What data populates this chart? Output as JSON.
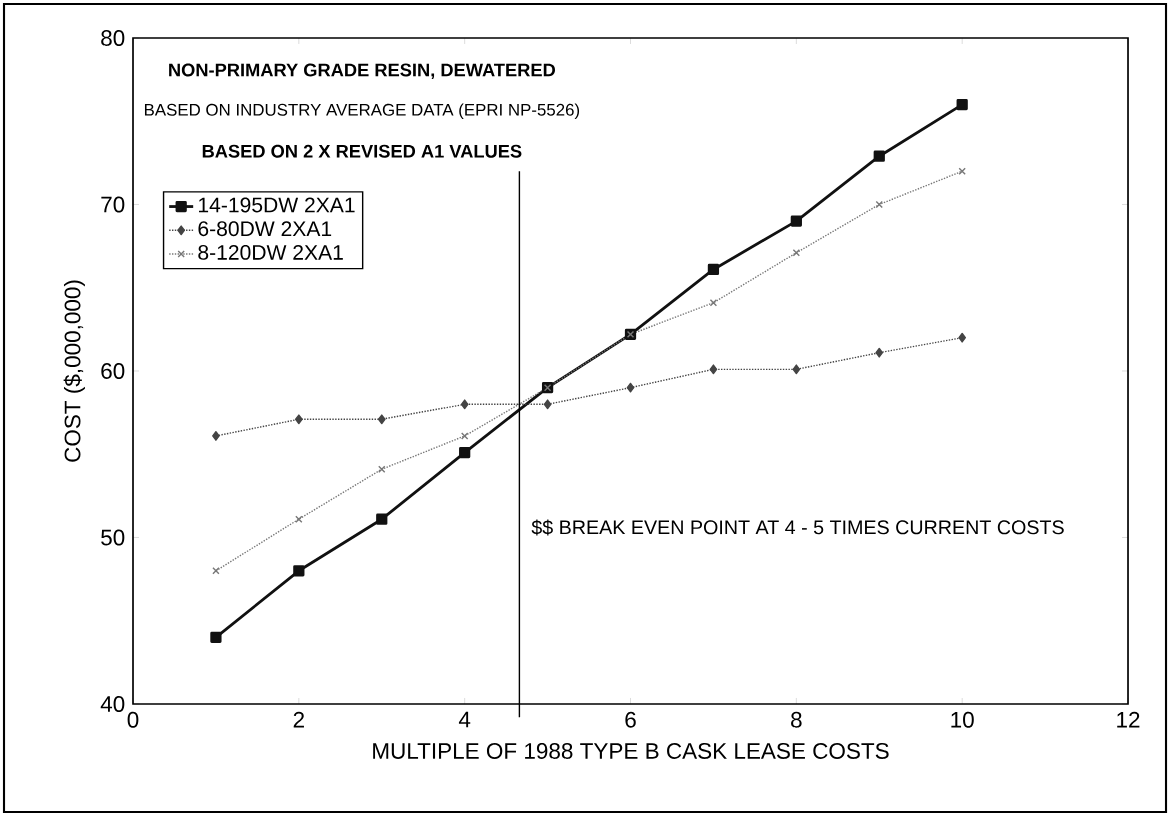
{
  "chart_data": {
    "type": "line",
    "title": "NON-PRIMARY GRADE RESIN, DEWATERED",
    "subtitle": "BASED ON INDUSTRY AVERAGE DATA (EPRI NP-5526)",
    "annotations": [
      "BASED ON 2 X REVISED A1 VALUES"
    ],
    "xlabel": "MULTIPLE OF 1988 TYPE B CASK LEASE COSTS",
    "ylabel": "COST ($,000,000)",
    "x": [
      1,
      2,
      3,
      4,
      5,
      6,
      7,
      8,
      9,
      10
    ],
    "series": [
      {
        "name": "14-195DW 2XA1",
        "color": "#111111",
        "marker": "square",
        "line_style": "solid",
        "values": [
          44.0,
          48.0,
          51.1,
          55.1,
          59.0,
          62.2,
          66.1,
          69.0,
          72.9,
          76.0
        ]
      },
      {
        "name": "6-80DW 2XA1",
        "color": "#444444",
        "marker": "diamond",
        "line_style": "dotted",
        "values": [
          56.1,
          57.1,
          57.1,
          58.0,
          58.0,
          59.0,
          60.1,
          60.1,
          61.1,
          62.0
        ]
      },
      {
        "name": "8-120DW 2XA1",
        "color": "#777777",
        "marker": "cross",
        "line_style": "dotted",
        "values": [
          48.0,
          51.1,
          54.1,
          56.1,
          59.0,
          62.2,
          64.1,
          67.1,
          70.0,
          72.0
        ]
      }
    ],
    "xlim": [
      0,
      12
    ],
    "ylim": [
      40,
      80
    ],
    "xticks": [
      0,
      2,
      4,
      6,
      8,
      10,
      12
    ],
    "yticks": [
      40,
      50,
      60,
      70,
      80
    ],
    "ref_lines": [
      {
        "axis": "x",
        "value": 4.66,
        "label": "$$ BREAK EVEN POINT AT 4 - 5 TIMES CURRENT COSTS",
        "color": "#000000"
      }
    ],
    "legend": "top left",
    "grid": false
  }
}
